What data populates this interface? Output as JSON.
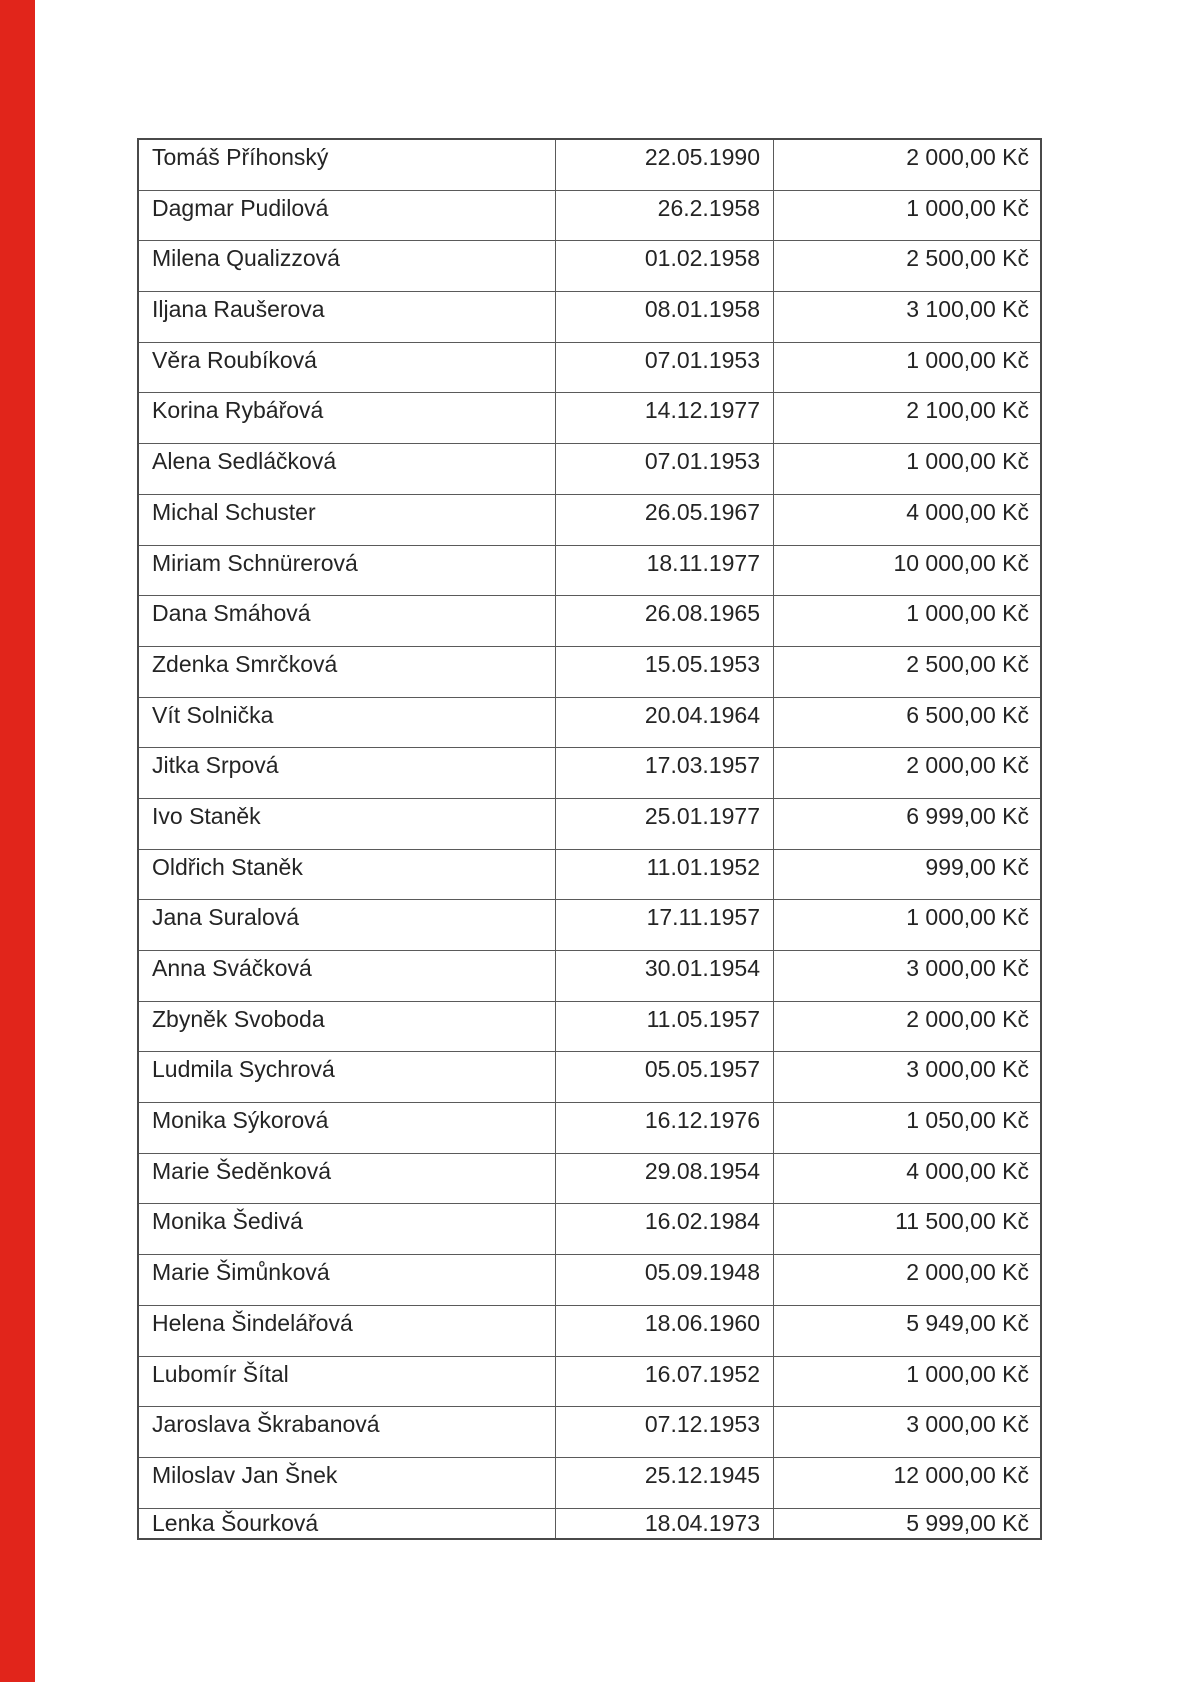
{
  "page": {
    "background": "#ffffff",
    "scan_stripe_color": "#e1251b"
  },
  "table": {
    "rows": [
      {
        "name": "Tomáš Příhonský",
        "birthdate": "22.05.1990",
        "amount": "2 000,00 Kč"
      },
      {
        "name": "Dagmar Pudilová",
        "birthdate": "26.2.1958",
        "amount": "1 000,00 Kč"
      },
      {
        "name": "Milena Qualizzová",
        "birthdate": "01.02.1958",
        "amount": "2 500,00 Kč"
      },
      {
        "name": "Iljana Raušerova",
        "birthdate": "08.01.1958",
        "amount": "3 100,00 Kč"
      },
      {
        "name": "Věra Roubíková",
        "birthdate": "07.01.1953",
        "amount": "1 000,00 Kč"
      },
      {
        "name": "Korina Rybářová",
        "birthdate": "14.12.1977",
        "amount": "2 100,00 Kč"
      },
      {
        "name": "Alena Sedláčková",
        "birthdate": "07.01.1953",
        "amount": "1 000,00 Kč"
      },
      {
        "name": "Michal Schuster",
        "birthdate": "26.05.1967",
        "amount": "4 000,00 Kč"
      },
      {
        "name": "Miriam Schnürerová",
        "birthdate": "18.11.1977",
        "amount": "10 000,00 Kč"
      },
      {
        "name": "Dana Smáhová",
        "birthdate": "26.08.1965",
        "amount": "1 000,00 Kč"
      },
      {
        "name": "Zdenka Smrčková",
        "birthdate": "15.05.1953",
        "amount": "2 500,00 Kč"
      },
      {
        "name": "Vít Solnička",
        "birthdate": "20.04.1964",
        "amount": "6 500,00 Kč"
      },
      {
        "name": "Jitka Srpová",
        "birthdate": "17.03.1957",
        "amount": "2 000,00 Kč"
      },
      {
        "name": "Ivo Staněk",
        "birthdate": "25.01.1977",
        "amount": "6 999,00 Kč"
      },
      {
        "name": "Oldřich Staněk",
        "birthdate": "11.01.1952",
        "amount": "999,00 Kč"
      },
      {
        "name": "Jana Suralová",
        "birthdate": "17.11.1957",
        "amount": "1 000,00 Kč"
      },
      {
        "name": "Anna Sváčková",
        "birthdate": "30.01.1954",
        "amount": "3 000,00 Kč"
      },
      {
        "name": "Zbyněk Svoboda",
        "birthdate": "11.05.1957",
        "amount": "2 000,00 Kč"
      },
      {
        "name": "Ludmila Sychrová",
        "birthdate": "05.05.1957",
        "amount": "3 000,00 Kč"
      },
      {
        "name": "Monika Sýkorová",
        "birthdate": "16.12.1976",
        "amount": "1 050,00 Kč"
      },
      {
        "name": "Marie Šeděnková",
        "birthdate": "29.08.1954",
        "amount": "4 000,00 Kč"
      },
      {
        "name": "Monika Šedivá",
        "birthdate": "16.02.1984",
        "amount": "11 500,00 Kč"
      },
      {
        "name": "Marie Šimůnková",
        "birthdate": "05.09.1948",
        "amount": "2 000,00 Kč"
      },
      {
        "name": "Helena Šindelářová",
        "birthdate": "18.06.1960",
        "amount": "5 949,00 Kč"
      },
      {
        "name": "Lubomír Šítal",
        "birthdate": "16.07.1952",
        "amount": "1 000,00 Kč"
      },
      {
        "name": "Jaroslava Škrabanová",
        "birthdate": "07.12.1953",
        "amount": "3 000,00 Kč"
      },
      {
        "name": "Miloslav Jan Šnek",
        "birthdate": "25.12.1945",
        "amount": "12 000,00 Kč"
      },
      {
        "name": "Lenka Šourková",
        "birthdate": "18.04.1973",
        "amount": "5 999,00 Kč"
      }
    ]
  }
}
